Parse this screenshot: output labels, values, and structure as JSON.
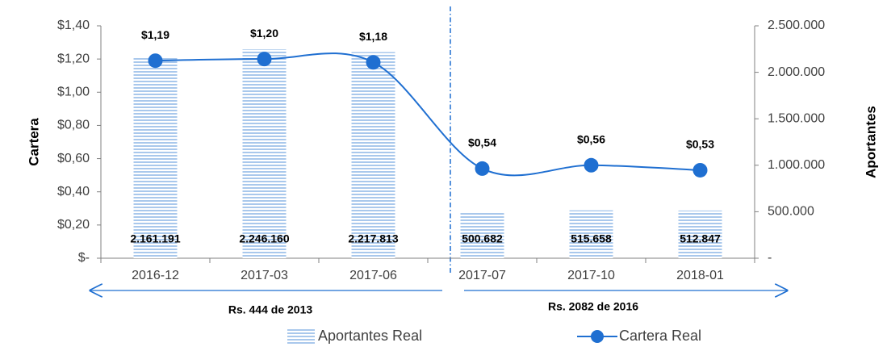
{
  "chart_data": {
    "type": "bar_line",
    "categories": [
      "2016-12",
      "2017-03",
      "2017-06",
      "2017-07",
      "2017-10",
      "2018-01"
    ],
    "series": [
      {
        "name": "Aportantes Real",
        "color": "#a9c8ec",
        "axis": "y2",
        "values": [
          2161191,
          2246160,
          2217813,
          500682,
          515658,
          512847
        ],
        "value_labels": [
          "2.161.191",
          "2.246.160",
          "2.217.813",
          "500.682",
          "515.658",
          "512.847"
        ]
      },
      {
        "name": "Cartera Real",
        "color": "#1f6fd1",
        "axis": "y",
        "values": [
          1.19,
          1.2,
          1.18,
          0.54,
          0.56,
          0.53
        ],
        "value_labels": [
          "$1,19",
          "$1,20",
          "$1,18",
          "$0,54",
          "$0,56",
          "$0,53"
        ]
      }
    ],
    "ylabel": "Cartera",
    "y2label": "Aportantes",
    "ylim": [
      0,
      1.4
    ],
    "yticks": [
      {
        "value": 0,
        "label": "$-"
      },
      {
        "value": 0.2,
        "label": "$0,20"
      },
      {
        "value": 0.4,
        "label": "$0,40"
      },
      {
        "value": 0.6,
        "label": "$0,60"
      },
      {
        "value": 0.8,
        "label": "$0,80"
      },
      {
        "value": 1.0,
        "label": "$1,00"
      },
      {
        "value": 1.2,
        "label": "$1,20"
      },
      {
        "value": 1.4,
        "label": "$1,40"
      }
    ],
    "y2lim": [
      0,
      2500000
    ],
    "y2ticks": [
      {
        "value": 0,
        "label": "-"
      },
      {
        "value": 500000,
        "label": "500.000"
      },
      {
        "value": 1000000,
        "label": "1.000.000"
      },
      {
        "value": 1500000,
        "label": "1.500.000"
      },
      {
        "value": 2000000,
        "label": "2.000.000"
      },
      {
        "value": 2500000,
        "label": "2.500.000"
      }
    ],
    "annotations": [
      "Rs. 444 de 2013",
      "Rs. 2082 de 2016"
    ],
    "grid": false,
    "legend": "bottom"
  }
}
